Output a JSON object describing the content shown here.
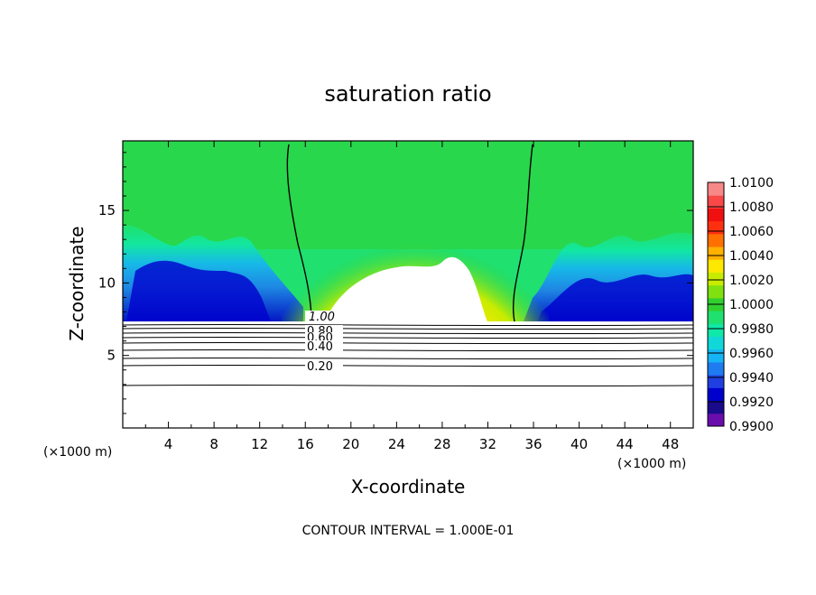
{
  "chart_data": {
    "type": "heatmap",
    "title": "saturation ratio",
    "xlabel": "X-coordinate",
    "ylabel": "Z-coordinate",
    "x_unit": "(×1000 m)",
    "y_unit": "(×1000 m)",
    "xlim": [
      0,
      50
    ],
    "ylim": [
      0,
      19.8
    ],
    "x_ticks": [
      "4",
      "8",
      "12",
      "16",
      "20",
      "24",
      "28",
      "32",
      "36",
      "40",
      "44",
      "48"
    ],
    "y_ticks": [
      "5",
      "10",
      "15"
    ],
    "colorbar": {
      "range": [
        0.99,
        1.01
      ],
      "tick_labels": [
        "1.0100",
        "1.0080",
        "1.0060",
        "1.0040",
        "1.0020",
        "1.0000",
        "0.9980",
        "0.9960",
        "0.9940",
        "0.9920",
        "0.9900"
      ],
      "colors_low_to_high": [
        "#6a0dad",
        "#1a0a8c",
        "#0000cd",
        "#1f3fe0",
        "#1e7cf0",
        "#16b4f5",
        "#10d8d8",
        "#10e8a8",
        "#20e070",
        "#30d030",
        "#80e010",
        "#c8ec00",
        "#ffe800",
        "#ffb000",
        "#ff7000",
        "#ff3010",
        "#f01010",
        "#f84848",
        "#f88888"
      ]
    },
    "contour_labels": [
      "1.00",
      "0.80",
      "0.60",
      "0.40",
      "0.20"
    ],
    "contour_interval_text": "CONTOUR INTERVAL = 1.000E-01"
  }
}
